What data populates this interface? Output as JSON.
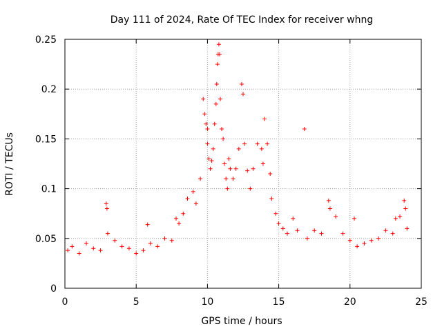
{
  "chart_data": {
    "type": "scatter",
    "title": "Day 111 of 2024, Rate Of TEC Index for receiver whng",
    "xlabel": "GPS time / hours",
    "ylabel": "ROTI / TECUs",
    "xlim": [
      0,
      25
    ],
    "ylim": [
      0,
      0.25
    ],
    "xticks": [
      0,
      5,
      10,
      15,
      20,
      25
    ],
    "yticks": [
      0,
      0.05,
      0.1,
      0.15,
      0.2,
      0.25
    ],
    "xtick_labels": [
      "0",
      "5",
      "10",
      "15",
      "20",
      "25"
    ],
    "ytick_labels": [
      "0",
      "0.05",
      "0.1",
      "0.15",
      "0.2",
      "0.25"
    ],
    "grid": true,
    "marker": "+",
    "color": "#ff0000",
    "series": [
      {
        "name": "ROTI",
        "x": [
          0.2,
          0.5,
          1.0,
          1.5,
          2.0,
          2.5,
          2.9,
          2.95,
          3.0,
          3.5,
          4.0,
          4.5,
          5.0,
          5.5,
          5.8,
          6.0,
          6.5,
          7.0,
          7.5,
          7.8,
          8.0,
          8.3,
          8.6,
          9.0,
          9.2,
          9.5,
          9.7,
          9.8,
          9.9,
          10.0,
          10.0,
          10.1,
          10.2,
          10.3,
          10.4,
          10.5,
          10.6,
          10.65,
          10.7,
          10.75,
          10.8,
          10.85,
          10.9,
          11.0,
          11.1,
          11.2,
          11.3,
          11.4,
          11.5,
          11.6,
          11.8,
          12.0,
          12.2,
          12.4,
          12.5,
          12.6,
          12.8,
          13.0,
          13.2,
          13.5,
          13.8,
          13.9,
          14.0,
          14.2,
          14.4,
          14.5,
          14.8,
          15.0,
          15.3,
          15.6,
          16.0,
          16.3,
          16.8,
          17.0,
          17.5,
          18.0,
          18.5,
          18.6,
          19.0,
          19.5,
          20.0,
          20.3,
          20.5,
          21.0,
          21.5,
          22.0,
          22.5,
          23.0,
          23.2,
          23.5,
          23.8,
          23.9,
          24.0
        ],
        "y": [
          0.038,
          0.042,
          0.035,
          0.045,
          0.04,
          0.038,
          0.085,
          0.08,
          0.055,
          0.048,
          0.042,
          0.04,
          0.035,
          0.038,
          0.064,
          0.045,
          0.042,
          0.05,
          0.048,
          0.07,
          0.065,
          0.075,
          0.09,
          0.097,
          0.085,
          0.11,
          0.19,
          0.175,
          0.165,
          0.16,
          0.145,
          0.13,
          0.12,
          0.128,
          0.14,
          0.165,
          0.185,
          0.205,
          0.225,
          0.235,
          0.245,
          0.235,
          0.19,
          0.16,
          0.15,
          0.125,
          0.11,
          0.1,
          0.13,
          0.12,
          0.11,
          0.12,
          0.14,
          0.205,
          0.195,
          0.145,
          0.118,
          0.1,
          0.12,
          0.145,
          0.14,
          0.125,
          0.17,
          0.145,
          0.115,
          0.09,
          0.075,
          0.065,
          0.06,
          0.055,
          0.07,
          0.058,
          0.16,
          0.05,
          0.058,
          0.055,
          0.088,
          0.08,
          0.072,
          0.055,
          0.048,
          0.07,
          0.042,
          0.045,
          0.048,
          0.05,
          0.058,
          0.055,
          0.07,
          0.072,
          0.088,
          0.08,
          0.06
        ]
      }
    ]
  }
}
